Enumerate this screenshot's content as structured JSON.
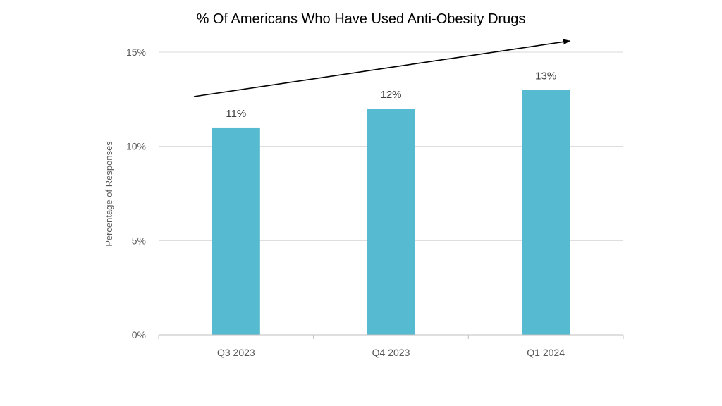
{
  "chart_data": {
    "type": "bar",
    "title": "% Of Americans Who Have Used Anti-Obesity Drugs",
    "ylabel": "Percentage of Responses",
    "xlabel": "",
    "categories": [
      "Q3 2023",
      "Q4 2023",
      "Q1 2024"
    ],
    "values": [
      11,
      12,
      13
    ],
    "value_labels": [
      "11%",
      "12%",
      "13%"
    ],
    "ylim": [
      0,
      15
    ],
    "yticks": [
      0,
      5,
      10,
      15
    ],
    "ytick_labels": [
      "0%",
      "5%",
      "10%",
      "15%"
    ],
    "grid": true,
    "bar_color": "#56BBD1",
    "trend_arrow": true
  }
}
